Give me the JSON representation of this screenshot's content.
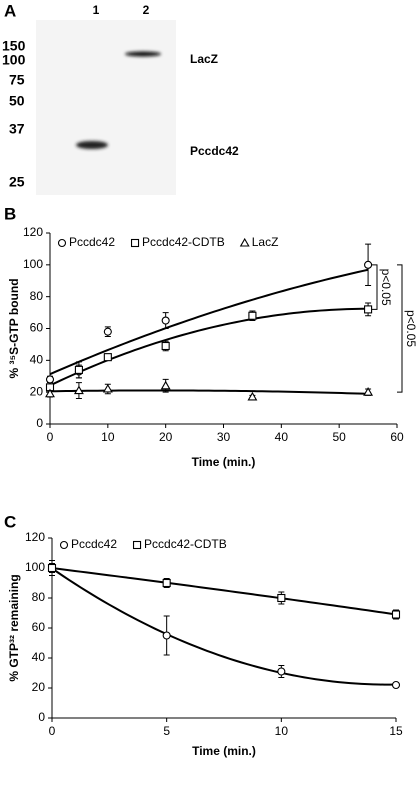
{
  "blot": {
    "label": "A",
    "lanes": [
      "1",
      "2"
    ],
    "markers": [
      "150",
      "100",
      "75",
      "50",
      "37",
      "25"
    ],
    "bands": [
      "LacZ",
      "Pccdc42"
    ]
  },
  "chart_data": [
    {
      "type": "scatter",
      "panel": "B",
      "ylabel": "% ³⁵S-GTP bound",
      "xlabel": "Time (min.)",
      "xlim": [
        0,
        60
      ],
      "xticks": [
        0,
        10,
        20,
        30,
        40,
        50,
        60
      ],
      "ylim": [
        0,
        120
      ],
      "yticks": [
        0,
        20,
        40,
        60,
        80,
        100,
        120
      ],
      "trendline": "poly2",
      "series": [
        {
          "name": "Pccdc42",
          "color": "#000000",
          "marker": "circle",
          "x": [
            0,
            5,
            10,
            20,
            35,
            55
          ],
          "values": [
            28,
            33,
            58,
            65,
            68,
            100
          ],
          "errors": [
            2,
            4,
            3,
            5,
            2,
            13
          ]
        },
        {
          "name": "Pccdc42-CDTB",
          "color": "#000000",
          "marker": "square",
          "x": [
            0,
            5,
            10,
            20,
            35,
            55
          ],
          "values": [
            23,
            34,
            42,
            49,
            68,
            72
          ],
          "errors": [
            2,
            5,
            2,
            3,
            3,
            4
          ]
        },
        {
          "name": "LacZ",
          "color": "#000000",
          "marker": "triangle",
          "x": [
            0,
            5,
            10,
            20,
            35,
            55
          ],
          "values": [
            19,
            21,
            22,
            24,
            17,
            20
          ],
          "errors": [
            2,
            5,
            3,
            4,
            1,
            2
          ]
        }
      ],
      "annotations": [
        "p<0.05",
        "p<0.05"
      ]
    },
    {
      "type": "scatter",
      "panel": "C",
      "ylabel": "% GTP³² remaining",
      "xlabel": "Time (min.)",
      "xlim": [
        0,
        15
      ],
      "xticks": [
        0,
        5,
        10,
        15
      ],
      "ylim": [
        0,
        120
      ],
      "yticks": [
        0,
        20,
        40,
        60,
        80,
        100,
        120
      ],
      "trendline": "poly2",
      "series": [
        {
          "name": "Pccdc42",
          "color": "#000000",
          "marker": "circle",
          "x": [
            0,
            5,
            10,
            15
          ],
          "values": [
            100,
            55,
            31,
            22
          ],
          "errors": [
            5,
            13,
            4,
            1
          ]
        },
        {
          "name": "Pccdc42-CDTB",
          "color": "#000000",
          "marker": "square",
          "x": [
            0,
            5,
            10,
            15
          ],
          "values": [
            100,
            90,
            80,
            69
          ],
          "errors": [
            3,
            3,
            4,
            3
          ]
        }
      ]
    }
  ]
}
